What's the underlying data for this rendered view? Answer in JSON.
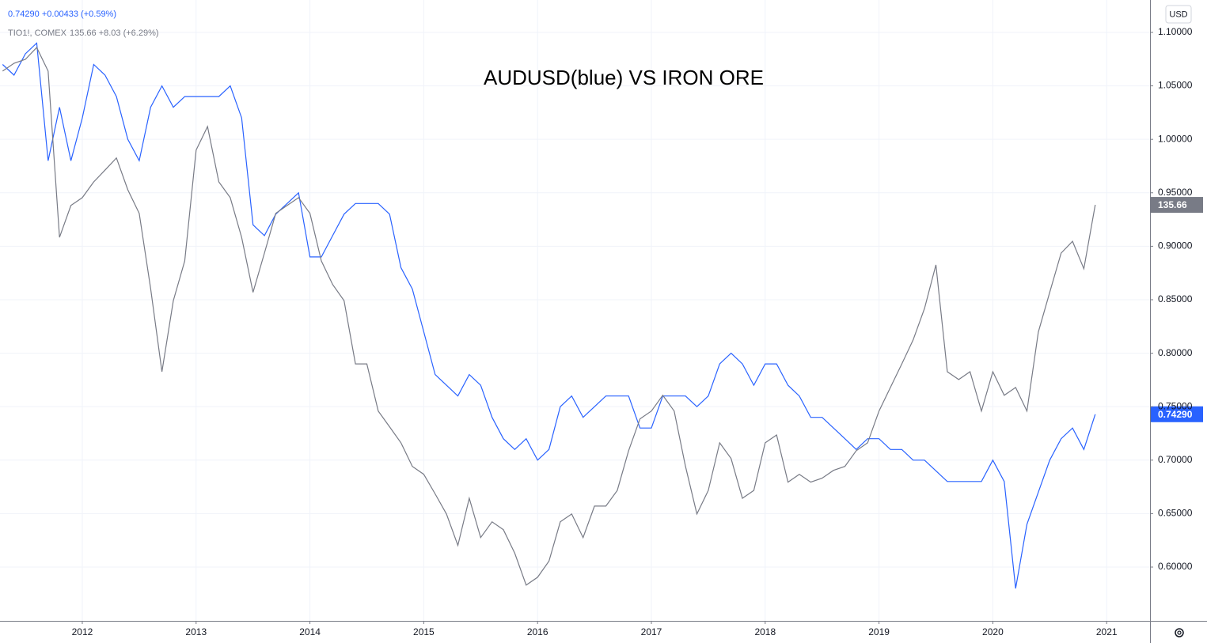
{
  "chart_data": {
    "type": "line",
    "title": "AUDUSD(blue) VS IRON ORE",
    "y_unit": "USD",
    "x": [
      2011.3,
      2011.4,
      2011.5,
      2011.6,
      2011.7,
      2011.8,
      2011.9,
      2012.0,
      2012.1,
      2012.2,
      2012.3,
      2012.4,
      2012.5,
      2012.6,
      2012.7,
      2012.8,
      2012.9,
      2013.0,
      2013.1,
      2013.2,
      2013.3,
      2013.4,
      2013.5,
      2013.6,
      2013.7,
      2013.8,
      2013.9,
      2014.0,
      2014.1,
      2014.2,
      2014.3,
      2014.4,
      2014.5,
      2014.6,
      2014.7,
      2014.8,
      2014.9,
      2015.0,
      2015.1,
      2015.2,
      2015.3,
      2015.4,
      2015.5,
      2015.6,
      2015.7,
      2015.8,
      2015.9,
      2016.0,
      2016.1,
      2016.2,
      2016.3,
      2016.4,
      2016.5,
      2016.6,
      2016.7,
      2016.8,
      2016.9,
      2017.0,
      2017.1,
      2017.2,
      2017.3,
      2017.4,
      2017.5,
      2017.6,
      2017.7,
      2017.8,
      2017.9,
      2018.0,
      2018.1,
      2018.2,
      2018.3,
      2018.4,
      2018.5,
      2018.6,
      2018.7,
      2018.8,
      2018.9,
      2019.0,
      2019.1,
      2019.2,
      2019.3,
      2019.4,
      2019.5,
      2019.6,
      2019.7,
      2019.8,
      2019.9,
      2020.0,
      2020.1,
      2020.2,
      2020.3,
      2020.4,
      2020.5,
      2020.6,
      2020.7,
      2020.8,
      2020.9
    ],
    "series": [
      {
        "color": "#2962ff",
        "quote": "0.74290 +0.00433 (+0.59%)",
        "last_label": "0.74290",
        "values": [
          1.07,
          1.06,
          1.08,
          1.09,
          0.98,
          1.03,
          0.98,
          1.02,
          1.07,
          1.06,
          1.04,
          1.0,
          0.98,
          1.03,
          1.05,
          1.03,
          1.04,
          1.04,
          1.04,
          1.04,
          1.05,
          1.02,
          0.92,
          0.91,
          0.93,
          0.94,
          0.95,
          0.89,
          0.89,
          0.91,
          0.93,
          0.94,
          0.94,
          0.94,
          0.93,
          0.88,
          0.86,
          0.82,
          0.78,
          0.77,
          0.76,
          0.78,
          0.77,
          0.74,
          0.72,
          0.71,
          0.72,
          0.7,
          0.71,
          0.75,
          0.76,
          0.74,
          0.75,
          0.76,
          0.76,
          0.76,
          0.73,
          0.73,
          0.76,
          0.76,
          0.76,
          0.75,
          0.76,
          0.79,
          0.8,
          0.79,
          0.77,
          0.79,
          0.79,
          0.77,
          0.76,
          0.74,
          0.74,
          0.73,
          0.72,
          0.71,
          0.72,
          0.72,
          0.71,
          0.71,
          0.7,
          0.7,
          0.69,
          0.68,
          0.68,
          0.68,
          0.68,
          0.7,
          0.68,
          0.58,
          0.64,
          0.67,
          0.7,
          0.72,
          0.73,
          0.71,
          0.7429
        ]
      },
      {
        "name": "TIO1!, COMEX",
        "color": "#787b86",
        "axis": "y2",
        "quote": "135.66 +8.03 (+6.29%)",
        "last_label": "135.66",
        "values": [
          169.7,
          171.7,
          172.7,
          175.7,
          169.7,
          127.4,
          135.5,
          137.5,
          141.5,
          144.5,
          147.6,
          139.5,
          133.5,
          114.4,
          93.2,
          111.3,
          121.4,
          149.6,
          155.6,
          141.5,
          137.5,
          127.4,
          113.4,
          123.4,
          133.5,
          135.5,
          137.5,
          133.5,
          121.4,
          115.4,
          111.3,
          95.2,
          95.2,
          83.2,
          79.2,
          75.1,
          69.1,
          67.1,
          62.1,
          57.0,
          49.0,
          61.0,
          51.0,
          55.0,
          53.0,
          47.0,
          38.9,
          40.9,
          45.0,
          55.0,
          57.0,
          51.0,
          59.0,
          59.0,
          63.0,
          73.1,
          81.2,
          83.2,
          87.2,
          83.2,
          69.1,
          57.0,
          63.0,
          75.1,
          71.1,
          61.0,
          63.0,
          75.1,
          77.1,
          65.1,
          67.1,
          65.1,
          66.1,
          68.1,
          69.1,
          73.1,
          75.1,
          83.2,
          89.2,
          95.2,
          101.3,
          109.3,
          120.4,
          93.2,
          91.2,
          93.2,
          83.2,
          93.2,
          87.2,
          89.2,
          83.2,
          103.3,
          113.4,
          123.4,
          126.4,
          119.4,
          135.66
        ]
      }
    ],
    "xlim": [
      2011.277,
      2021.381
    ],
    "xticks": [
      2012,
      2013,
      2014,
      2015,
      2016,
      2017,
      2018,
      2019,
      2020,
      2021
    ],
    "ylim": [
      0.5497,
      1.1303
    ],
    "yticks": [
      {
        "value": 0.6,
        "label": "0.60000"
      },
      {
        "value": 0.65,
        "label": "0.65000"
      },
      {
        "value": 0.7,
        "label": "0.70000"
      },
      {
        "value": 0.75,
        "label": "0.75000"
      },
      {
        "value": 0.8,
        "label": "0.80000"
      },
      {
        "value": 0.85,
        "label": "0.85000"
      },
      {
        "value": 0.9,
        "label": "0.90000"
      },
      {
        "value": 0.95,
        "label": "0.95000"
      },
      {
        "value": 1.0,
        "label": "1.00000"
      },
      {
        "value": 1.05,
        "label": "1.05000"
      },
      {
        "value": 1.1,
        "label": "1.10000"
      }
    ],
    "y2lim": [
      29.8,
      187.8
    ],
    "grid": true
  }
}
